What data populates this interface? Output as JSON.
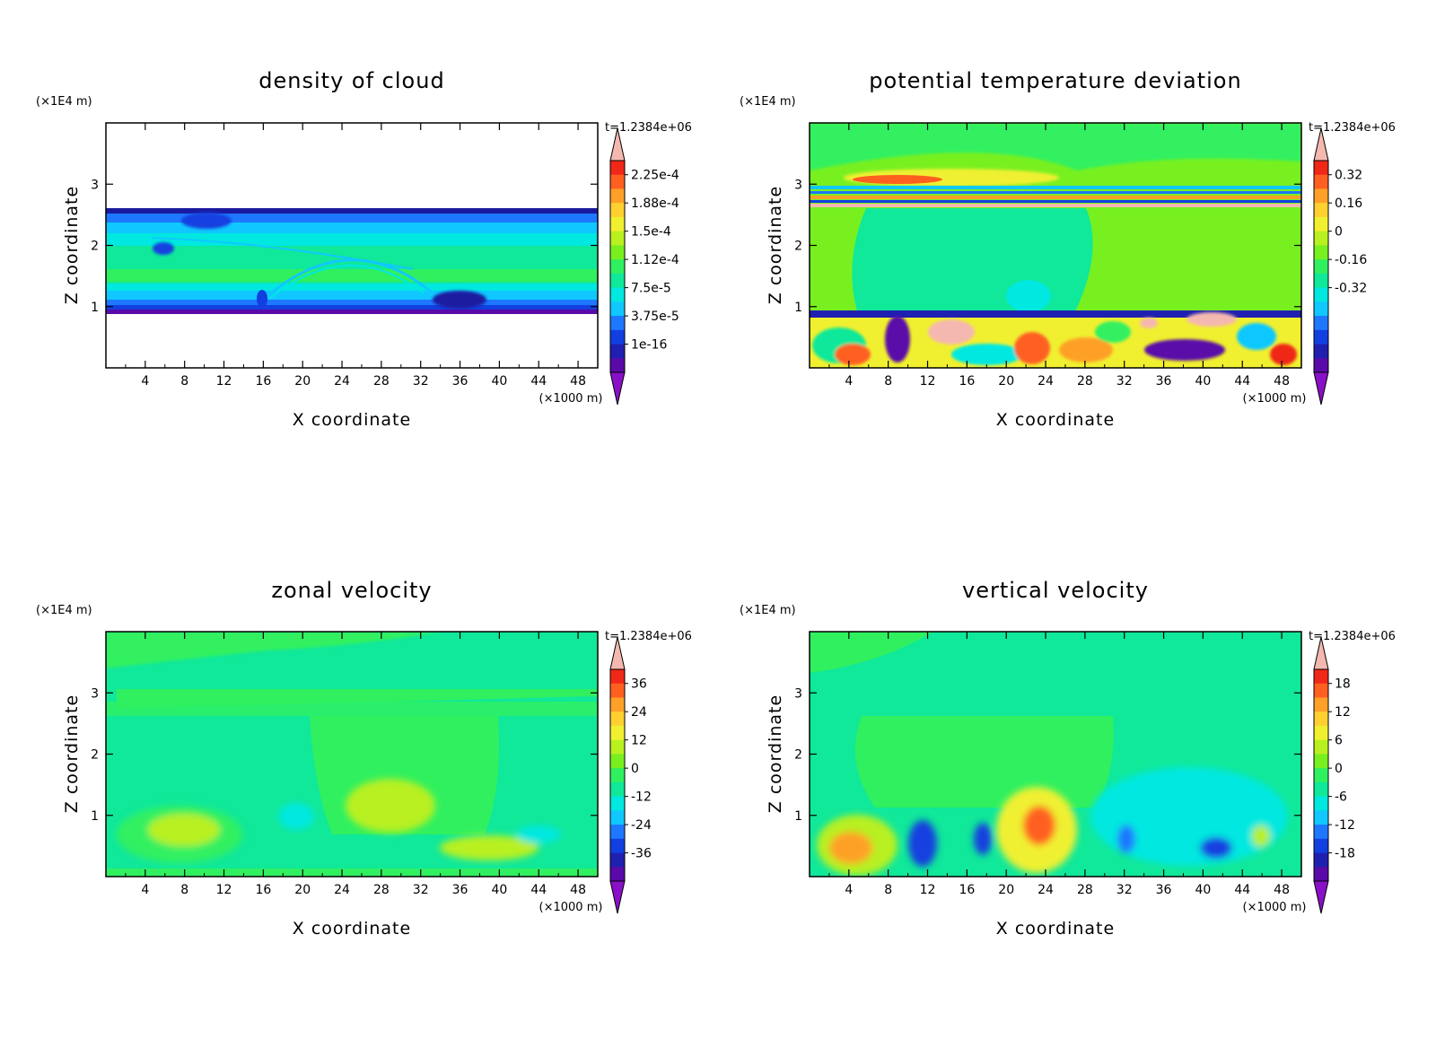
{
  "chart_data": [
    {
      "type": "heatmap",
      "title": "density of cloud",
      "xlabel": "X coordinate",
      "ylabel": "Z coordinate",
      "x_unit": "(×1000 m)",
      "y_unit": "(×1E4 m)",
      "time_label": "t=1.2384e+06",
      "xlim": [
        0,
        50
      ],
      "ylim": [
        0,
        4
      ],
      "x_ticks": [
        "4",
        "8",
        "12",
        "16",
        "20",
        "24",
        "28",
        "32",
        "36",
        "40",
        "44",
        "48"
      ],
      "y_ticks": [
        "1",
        "2",
        "3"
      ],
      "colorbar_labels": [
        "2.25e-4",
        "1.88e-4",
        "1.5e-4",
        "1.12e-4",
        "7.5e-5",
        "3.75e-5",
        "1e-16"
      ],
      "colors": [
        "#c89ad6",
        "#5a0aa8",
        "#2020b0",
        "#1240e0",
        "#1e78ff",
        "#10c8ff",
        "#00e8e0",
        "#10e89a",
        "#30f060",
        "#78f020",
        "#b8f020",
        "#f0f030",
        "#ffd030",
        "#ffa028",
        "#ff6020",
        "#f02818",
        "#f5b8b0"
      ]
    },
    {
      "type": "heatmap",
      "title": "potential temperature deviation",
      "xlabel": "X coordinate",
      "ylabel": "Z coordinate",
      "x_unit": "(×1000 m)",
      "y_unit": "(×1E4 m)",
      "time_label": "t=1.2384e+06",
      "xlim": [
        0,
        50
      ],
      "ylim": [
        0,
        4
      ],
      "x_ticks": [
        "4",
        "8",
        "12",
        "16",
        "20",
        "24",
        "28",
        "32",
        "36",
        "40",
        "44",
        "48"
      ],
      "y_ticks": [
        "1",
        "2",
        "3"
      ],
      "colorbar_labels": [
        "0.32",
        "0.16",
        "0",
        "-0.16",
        "-0.32"
      ]
    },
    {
      "type": "heatmap",
      "title": "zonal velocity",
      "xlabel": "X coordinate",
      "ylabel": "Z coordinate",
      "x_unit": "(×1000 m)",
      "y_unit": "(×1E4 m)",
      "time_label": "t=1.2384e+06",
      "xlim": [
        0,
        50
      ],
      "ylim": [
        0,
        4
      ],
      "x_ticks": [
        "4",
        "8",
        "12",
        "16",
        "20",
        "24",
        "28",
        "32",
        "36",
        "40",
        "44",
        "48"
      ],
      "y_ticks": [
        "1",
        "2",
        "3"
      ],
      "colorbar_labels": [
        "36",
        "24",
        "12",
        "0",
        "-12",
        "-24",
        "-36"
      ]
    },
    {
      "type": "heatmap",
      "title": "vertical velocity",
      "xlabel": "X coordinate",
      "ylabel": "Z coordinate",
      "x_unit": "(×1000 m)",
      "y_unit": "(×1E4 m)",
      "time_label": "t=1.2384e+06",
      "xlim": [
        0,
        50
      ],
      "ylim": [
        0,
        4
      ],
      "x_ticks": [
        "4",
        "8",
        "12",
        "16",
        "20",
        "24",
        "28",
        "32",
        "36",
        "40",
        "44",
        "48"
      ],
      "y_ticks": [
        "1",
        "2",
        "3"
      ],
      "colorbar_labels": [
        "18",
        "12",
        "6",
        "0",
        "-6",
        "-12",
        "-18"
      ]
    }
  ]
}
